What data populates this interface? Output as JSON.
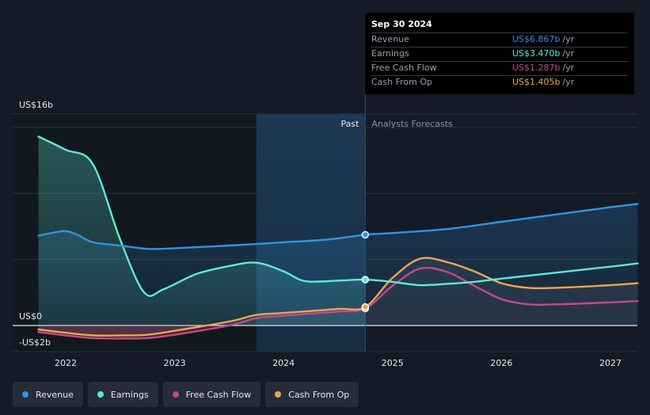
{
  "chart_data": {
    "type": "line",
    "title": "",
    "y_axis": {
      "top_label": "US$16b",
      "zero_label": "US$0",
      "bottom_label": "-US$2b",
      "ylim": [
        -2,
        16
      ]
    },
    "x_axis": {
      "tick_labels": [
        "2022",
        "2023",
        "2024",
        "2025",
        "2026",
        "2027"
      ],
      "xlim": [
        2021.76,
        2027.25
      ]
    },
    "past_label": "Past",
    "forecast_label": "Analysts Forecasts",
    "divider_x": 2024.75,
    "past_shade_start_x": 2023.75,
    "series": [
      {
        "name": "Revenue",
        "color": "#2f95e0",
        "points": [
          [
            2021.75,
            6.8
          ],
          [
            2021.9,
            7.05
          ],
          [
            2022.0,
            7.15
          ],
          [
            2022.1,
            6.9
          ],
          [
            2022.25,
            6.3
          ],
          [
            2022.5,
            6.05
          ],
          [
            2022.75,
            5.8
          ],
          [
            2023.0,
            5.85
          ],
          [
            2023.5,
            6.05
          ],
          [
            2024.0,
            6.3
          ],
          [
            2024.4,
            6.5
          ],
          [
            2024.75,
            6.867
          ],
          [
            2025.0,
            7.0
          ],
          [
            2025.5,
            7.3
          ],
          [
            2026.0,
            7.85
          ],
          [
            2026.5,
            8.4
          ],
          [
            2027.0,
            8.95
          ],
          [
            2027.25,
            9.2
          ]
        ]
      },
      {
        "name": "Earnings",
        "color": "#5eead4",
        "points": [
          [
            2021.75,
            14.3
          ],
          [
            2022.0,
            13.3
          ],
          [
            2022.25,
            12.2
          ],
          [
            2022.5,
            6.5
          ],
          [
            2022.72,
            2.5
          ],
          [
            2022.9,
            2.75
          ],
          [
            2023.2,
            3.9
          ],
          [
            2023.5,
            4.5
          ],
          [
            2023.75,
            4.75
          ],
          [
            2024.0,
            4.1
          ],
          [
            2024.2,
            3.35
          ],
          [
            2024.5,
            3.4
          ],
          [
            2024.75,
            3.47
          ],
          [
            2025.0,
            3.3
          ],
          [
            2025.25,
            3.05
          ],
          [
            2025.5,
            3.15
          ],
          [
            2025.75,
            3.3
          ],
          [
            2026.0,
            3.55
          ],
          [
            2026.5,
            4.0
          ],
          [
            2027.0,
            4.45
          ],
          [
            2027.25,
            4.7
          ]
        ]
      },
      {
        "name": "Free Cash Flow",
        "color": "#c8478a",
        "points": [
          [
            2021.75,
            -0.5
          ],
          [
            2022.0,
            -0.75
          ],
          [
            2022.25,
            -0.95
          ],
          [
            2022.5,
            -0.98
          ],
          [
            2022.75,
            -0.95
          ],
          [
            2023.0,
            -0.7
          ],
          [
            2023.5,
            0.0
          ],
          [
            2023.75,
            0.55
          ],
          [
            2024.0,
            0.75
          ],
          [
            2024.5,
            1.05
          ],
          [
            2024.75,
            1.287
          ],
          [
            2025.0,
            3.0
          ],
          [
            2025.25,
            4.3
          ],
          [
            2025.5,
            4.05
          ],
          [
            2025.75,
            3.0
          ],
          [
            2026.0,
            2.0
          ],
          [
            2026.25,
            1.6
          ],
          [
            2026.5,
            1.6
          ],
          [
            2027.0,
            1.75
          ],
          [
            2027.25,
            1.85
          ]
        ]
      },
      {
        "name": "Cash From Op",
        "color": "#e9a84e",
        "points": [
          [
            2021.75,
            -0.3
          ],
          [
            2022.0,
            -0.55
          ],
          [
            2022.25,
            -0.75
          ],
          [
            2022.5,
            -0.75
          ],
          [
            2022.75,
            -0.7
          ],
          [
            2023.0,
            -0.4
          ],
          [
            2023.5,
            0.3
          ],
          [
            2023.75,
            0.8
          ],
          [
            2024.0,
            0.95
          ],
          [
            2024.5,
            1.25
          ],
          [
            2024.75,
            1.405
          ],
          [
            2025.0,
            3.6
          ],
          [
            2025.25,
            5.05
          ],
          [
            2025.5,
            4.8
          ],
          [
            2025.75,
            4.1
          ],
          [
            2026.0,
            3.2
          ],
          [
            2026.25,
            2.85
          ],
          [
            2026.5,
            2.85
          ],
          [
            2027.0,
            3.05
          ],
          [
            2027.25,
            3.2
          ]
        ]
      }
    ]
  },
  "tooltip": {
    "date": "Sep 30 2024",
    "rows": [
      {
        "label": "Revenue",
        "value": "US$6.867b",
        "unit": "/yr",
        "color": "#2f95e0"
      },
      {
        "label": "Earnings",
        "value": "US$3.470b",
        "unit": "/yr",
        "color": "#5eead4"
      },
      {
        "label": "Free Cash Flow",
        "value": "US$1.287b",
        "unit": "/yr",
        "color": "#c8478a"
      },
      {
        "label": "Cash From Op",
        "value": "US$1.405b",
        "unit": "/yr",
        "color": "#e9a84e"
      }
    ]
  },
  "legend": [
    {
      "label": "Revenue",
      "color": "#2f95e0"
    },
    {
      "label": "Earnings",
      "color": "#5eead4"
    },
    {
      "label": "Free Cash Flow",
      "color": "#c8478a"
    },
    {
      "label": "Cash From Op",
      "color": "#e9a84e"
    }
  ]
}
